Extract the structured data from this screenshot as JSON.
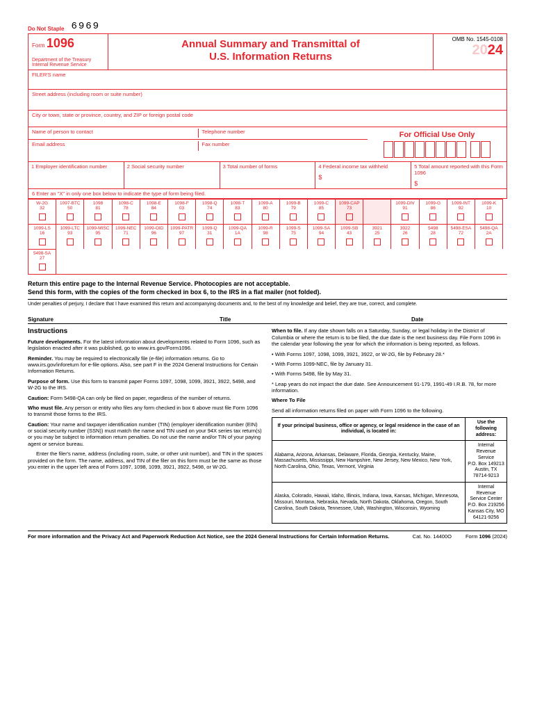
{
  "doNotStaple": "Do Not Staple",
  "handwritten": "6969",
  "formNumber": "1096",
  "dept": "Department of the Treasury\nInternal Revenue Service",
  "title1": "Annual Summary and Transmittal of",
  "title2": "U.S. Information Returns",
  "omb": "OMB No. 1545-0108",
  "yearPrefix": "20",
  "yearSuffix": "24",
  "filersName": "FILER'S name",
  "street": "Street address (including room or suite number)",
  "cityLine": "City or town, state or province, country, and ZIP or foreign postal code",
  "contactName": "Name of person to contact",
  "telephone": "Telephone number",
  "email": "Email address",
  "fax": "Fax number",
  "officialUse": "For Official Use Only",
  "box1": "1 Employer identification number",
  "box2": "2 Social security number",
  "box3": "3 Total number of forms",
  "box4": "4 Federal income tax withheld",
  "box5": "5 Total amount reported with this Form 1096",
  "box6": "6 Enter an \"X\" in only one box below to indicate the type of form being filed.",
  "checkboxes": [
    {
      "name": "W-2G",
      "num": "32",
      "hl": false
    },
    {
      "name": "1097-BTC",
      "num": "50",
      "hl": false
    },
    {
      "name": "1098",
      "num": "81",
      "hl": false
    },
    {
      "name": "1098-C",
      "num": "78",
      "hl": false
    },
    {
      "name": "1098-E",
      "num": "84",
      "hl": false
    },
    {
      "name": "1098-F",
      "num": "03",
      "hl": false
    },
    {
      "name": "1098-Q",
      "num": "74",
      "hl": false
    },
    {
      "name": "1098-T",
      "num": "83",
      "hl": false
    },
    {
      "name": "1099-A",
      "num": "80",
      "hl": false
    },
    {
      "name": "1099-B",
      "num": "79",
      "hl": false
    },
    {
      "name": "1099-C",
      "num": "85",
      "hl": false
    },
    {
      "name": "1099-CAP",
      "num": "73",
      "hl": true
    },
    {
      "name": "",
      "num": "",
      "hl": true
    },
    {
      "name": "1099-DIV",
      "num": "91",
      "hl": false
    },
    {
      "name": "1099-G",
      "num": "86",
      "hl": false
    },
    {
      "name": "1099-INT",
      "num": "92",
      "hl": false
    },
    {
      "name": "1099-K",
      "num": "10",
      "hl": false
    },
    {
      "name": "1099-LS",
      "num": "16",
      "hl": false
    },
    {
      "name": "1099-LTC",
      "num": "93",
      "hl": false
    },
    {
      "name": "1099-MISC",
      "num": "95",
      "hl": false
    },
    {
      "name": "1099-NEC",
      "num": "71",
      "hl": false
    },
    {
      "name": "1099-OID",
      "num": "96",
      "hl": false
    },
    {
      "name": "1099-PATR",
      "num": "97",
      "hl": false
    },
    {
      "name": "1099-Q",
      "num": "31",
      "hl": false
    },
    {
      "name": "1099-QA",
      "num": "1A",
      "hl": false
    },
    {
      "name": "1099-R",
      "num": "98",
      "hl": false
    },
    {
      "name": "1099-S",
      "num": "75",
      "hl": false
    },
    {
      "name": "1099-SA",
      "num": "94",
      "hl": false
    },
    {
      "name": "1099-SB",
      "num": "43",
      "hl": false
    },
    {
      "name": "3921",
      "num": "25",
      "hl": false
    },
    {
      "name": "3922",
      "num": "26",
      "hl": false
    },
    {
      "name": "5498",
      "num": "28",
      "hl": false
    },
    {
      "name": "5498-ESA",
      "num": "72",
      "hl": false
    },
    {
      "name": "5498-QA",
      "num": "2A",
      "hl": false
    },
    {
      "name": "5498-SA",
      "num": "27",
      "hl": false
    }
  ],
  "cbPerRow": 17,
  "cbCellWidth": 40.2,
  "returnInst1": "Return this entire page to the Internal Revenue Service. Photocopies are not acceptable.",
  "returnInst2": "Send this form, with the copies of the form checked in box 6, to the IRS in a flat mailer (not folded).",
  "perjury": "Under penalties of perjury, I declare that I have examined this return and accompanying documents and, to the best of my knowledge and belief, they are true, correct, and complete.",
  "sigLabel": "Signature",
  "titleLabel": "Title",
  "dateLabel": "Date",
  "instHeading": "Instructions",
  "futureDev": "Future developments. For the latest information about developments related to Form 1096, such as legislation enacted after it was published, go to www.irs.gov/Form1096.",
  "reminder": "Reminder. You may be required to electronically file (e-file) information returns. Go to www.irs.gov/inforeturn for e-file options. Also, see part F in the 2024 General Instructions for Certain Information Returns.",
  "purpose": "Purpose of form. Use this form to transmit paper Forms 1097, 1098, 1099, 3921, 3922, 5498, and W-2G to the IRS.",
  "caution1": "Caution: Form 5498-QA can only be filed on paper, regardless of the number of returns.",
  "whoMust": "Who must file. Any person or entity who files any form checked in box 6 above must file Form 1096 to transmit those forms to the IRS.",
  "caution2": "Caution: Your name and taxpayer identification number (TIN) (employer identification number (EIN) or social security number (SSN)) must match the name and TIN used on your 94X series tax return(s) or you may be subject to information return penalties. Do not use the name and/or TIN of your paying agent or service bureau.",
  "enterFiler": "Enter the filer's name, address (including room, suite, or other unit number), and TIN in the spaces provided on the form. The name, address, and TIN of the filer on this form must be the same as those you enter in the upper left area of Form 1097, 1098, 1099, 3921, 3922, 5498, or W-2G.",
  "whenToFile": "When to file. If any date shown falls on a Saturday, Sunday, or legal holiday in the District of Columbia or where the return is to be filed, the due date is the next business day. File Form 1096 in the calendar year following the year for which the information is being reported, as follows.",
  "bullet1": "• With Forms 1097, 1098, 1099, 3921, 3922, or W-2G, file by February 28.*",
  "bullet2": "• With Forms 1099-NEC, file by January 31.",
  "bullet3": "• With Forms 5498, file by May 31.",
  "leapNote": "* Leap years do not impact the due date. See Announcement 91-179, 1991-49 I.R.B. 78, for more information.",
  "whereHeading": "Where To File",
  "whereText": "Send all information returns filed on paper with Form 1096 to the following.",
  "addrTh1": "If your principal business, office or agency, or legal residence in the case of an individual, is located in:",
  "addrTh2": "Use the following address:",
  "states1": "Alabama, Arizona, Arkansas, Delaware, Florida, Georgia, Kentucky, Maine, Massachusetts, Mississippi, New Hampshire, New Jersey, New Mexico, New York, North Carolina, Ohio, Texas, Vermont, Virginia",
  "addr1": "Internal Revenue Service\nP.O. Box 149213\nAustin, TX 78714-9213",
  "states2": "Alaska, Colorado, Hawaii, Idaho, Illinois, Indiana, Iowa, Kansas, Michigan, Minnesota, Missouri, Montana, Nebraska, Nevada, North Dakota, Oklahoma, Oregon, South Carolina, South Dakota, Tennessee, Utah, Washington, Wisconsin, Wyoming",
  "addr2": "Internal Revenue Service Center\nP.O. Box 219256\nKansas City, MO 64121-9256",
  "footerLeft": "For more information and the Privacy Act and Paperwork Reduction Act Notice, see the 2024 General Instructions for Certain Information Returns.",
  "catNo": "Cat. No. 14400O",
  "footerRight": "Form 1096 (2024)"
}
